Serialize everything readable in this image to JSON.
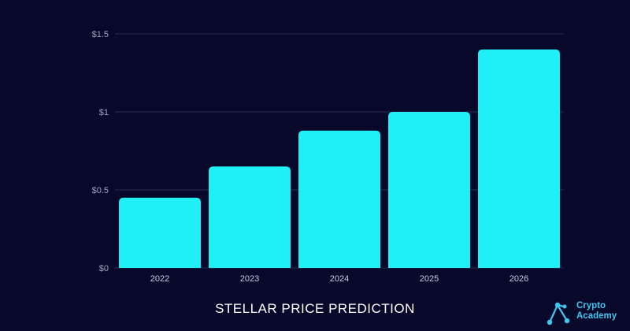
{
  "chart_data": {
    "type": "bar",
    "title": "STELLAR PRICE PREDICTION",
    "categories": [
      "2022",
      "2023",
      "2024",
      "2025",
      "2026"
    ],
    "values": [
      0.45,
      0.65,
      0.88,
      1.0,
      1.4
    ],
    "yticks": [
      {
        "value": 0,
        "label": "$0"
      },
      {
        "value": 0.5,
        "label": "$0.5"
      },
      {
        "value": 1,
        "label": "$1"
      },
      {
        "value": 1.5,
        "label": "$1.5"
      }
    ],
    "ylim": [
      0,
      1.5
    ],
    "grid": true,
    "legend": "none",
    "bar_color": "#1ef0f6",
    "background_color": "#07082a",
    "gridline_color": "#2a2d55"
  },
  "brand": {
    "line1": "Crypto",
    "line2": "Academy",
    "icon": "crypto-academy-logo-icon",
    "color": "#3ec8f0"
  }
}
